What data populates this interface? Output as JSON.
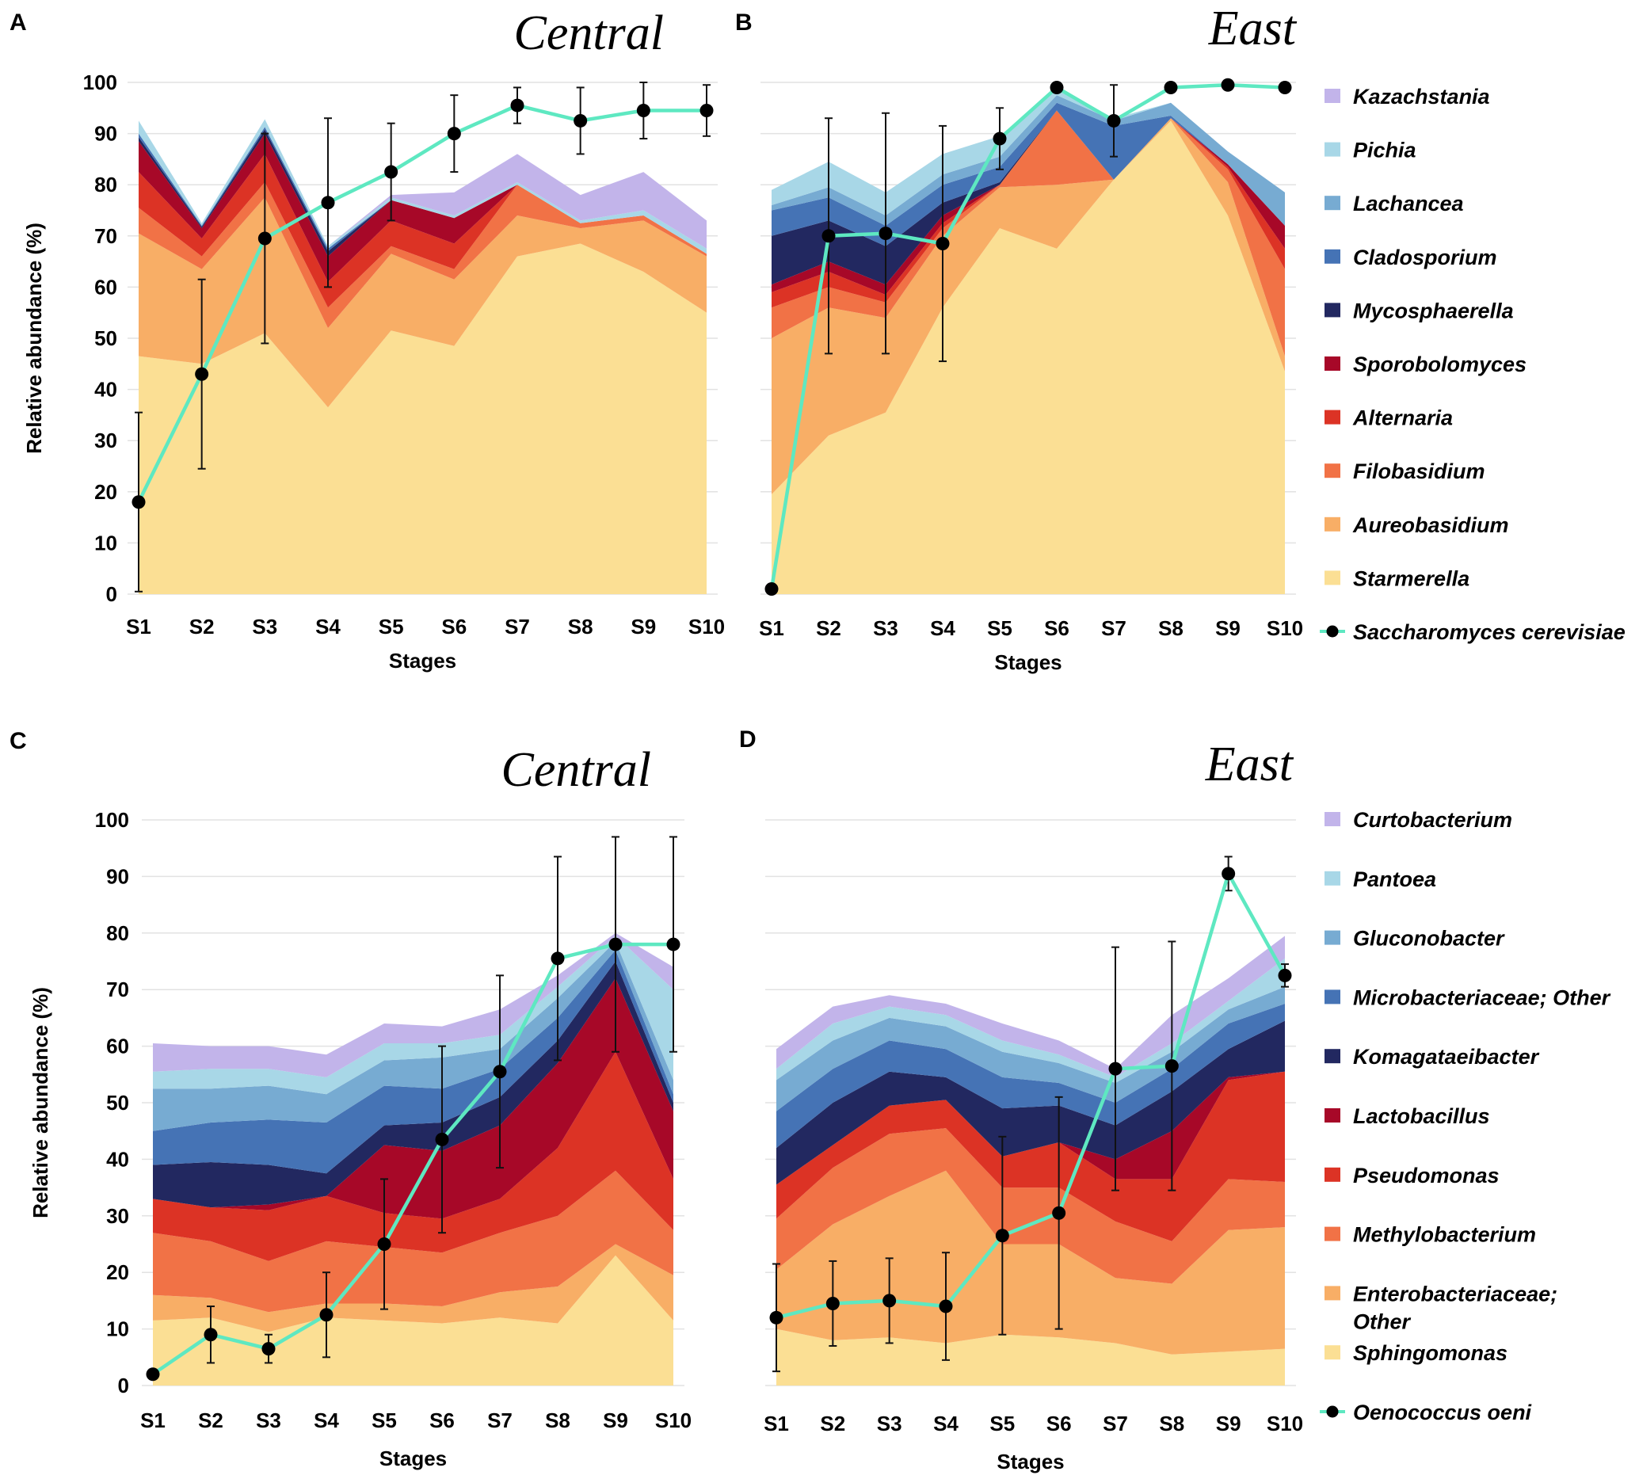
{
  "chart_data": [
    {
      "panel": "A",
      "title": "Central",
      "type": "area",
      "stacked": true,
      "xlabel": "Stages",
      "ylabel": "Relative abundance (%)",
      "ylim": [
        0,
        100
      ],
      "yticks": [
        0,
        10,
        20,
        30,
        40,
        50,
        60,
        70,
        80,
        90,
        100
      ],
      "categories": [
        "S1",
        "S2",
        "S3",
        "S4",
        "S5",
        "S6",
        "S7",
        "S8",
        "S9",
        "S10"
      ],
      "show_yticks": true,
      "series": [
        {
          "name": "Starmerella",
          "color": "#fbdf94",
          "values": [
            46.5,
            45,
            51,
            36.5,
            51.5,
            48.5,
            66,
            68.5,
            63,
            55
          ]
        },
        {
          "name": "Aureobasidium",
          "color": "#f8ae66",
          "values": [
            24,
            18.5,
            26.5,
            15.5,
            15,
            13,
            8,
            3,
            10,
            11
          ]
        },
        {
          "name": "Filobasidium",
          "color": "#f17246",
          "values": [
            5,
            2.5,
            3,
            4,
            1.5,
            2,
            6,
            1,
            1,
            0.5
          ]
        },
        {
          "name": "Alternaria",
          "color": "#dc3325",
          "values": [
            7,
            3.5,
            5.5,
            5,
            5,
            5,
            0,
            0,
            0,
            0
          ]
        },
        {
          "name": "Sporobolomyces",
          "color": "#a70828",
          "values": [
            6,
            2,
            4,
            5,
            4,
            5,
            0,
            0,
            0,
            0
          ]
        },
        {
          "name": "Mycosphaerella",
          "color": "#222860",
          "values": [
            0.8,
            0.3,
            0.8,
            1,
            0,
            0,
            0,
            0,
            0,
            0
          ]
        },
        {
          "name": "Cladosporium",
          "color": "#4573b5",
          "values": [
            0.7,
            0.2,
            0.5,
            0.5,
            0,
            0,
            0,
            0,
            0,
            0
          ]
        },
        {
          "name": "Lachancea",
          "color": "#77abd2",
          "values": [
            0,
            0,
            0,
            0,
            0,
            0,
            0,
            0,
            0,
            0
          ]
        },
        {
          "name": "Pichia",
          "color": "#a8d7e7",
          "values": [
            2.5,
            0.5,
            1.5,
            0.5,
            0.5,
            0.5,
            0.5,
            0.5,
            1,
            1
          ]
        },
        {
          "name": "Kazachstania",
          "color": "#c2b4ea",
          "values": [
            0,
            0,
            0,
            0,
            0.5,
            4.5,
            5.5,
            5,
            7.5,
            5.5
          ]
        }
      ],
      "line": {
        "name": "Saccharomyces cerevisiae",
        "color": "#5ee8c1",
        "values": [
          18,
          43,
          69.5,
          76.5,
          82.5,
          90,
          95.5,
          92.5,
          94.5,
          94.5
        ],
        "error": [
          17.5,
          18.5,
          20.5,
          16.5,
          9.5,
          7.5,
          3.5,
          6.5,
          5.5,
          5
        ]
      }
    },
    {
      "panel": "B",
      "title": "East",
      "type": "area",
      "stacked": true,
      "xlabel": "Stages",
      "ylabel": "",
      "ylim": [
        0,
        100
      ],
      "categories": [
        "S1",
        "S2",
        "S3",
        "S4",
        "S5",
        "S6",
        "S7",
        "S8",
        "S9",
        "S10"
      ],
      "show_yticks": false,
      "series": [
        {
          "name": "Starmerella",
          "color": "#fbdf94",
          "values": [
            19.5,
            31,
            35.5,
            56,
            71.5,
            67.5,
            81,
            92.5,
            74,
            43.5
          ]
        },
        {
          "name": "Aureobasidium",
          "color": "#f8ae66",
          "values": [
            30.5,
            25,
            18.5,
            14,
            8,
            12.5,
            0,
            0.5,
            6.5,
            3
          ]
        },
        {
          "name": "Filobasidium",
          "color": "#f17246",
          "values": [
            6,
            4,
            3,
            1.5,
            0.5,
            14.5,
            0,
            0,
            2.5,
            17
          ]
        },
        {
          "name": "Alternaria",
          "color": "#dc3325",
          "values": [
            3,
            3,
            1.5,
            1,
            0,
            0,
            0,
            0,
            0.5,
            4
          ]
        },
        {
          "name": "Sporobolomyces",
          "color": "#a70828",
          "values": [
            1.5,
            2,
            2,
            1.5,
            0,
            0,
            0,
            0,
            0.5,
            4.5
          ]
        },
        {
          "name": "Mycosphaerella",
          "color": "#222860",
          "values": [
            9.5,
            8,
            7.5,
            2.5,
            0.5,
            0,
            0,
            0,
            0,
            0
          ]
        },
        {
          "name": "Cladosporium",
          "color": "#4573b5",
          "values": [
            5,
            4.5,
            4,
            3.5,
            3,
            1.5,
            10.5,
            0.5,
            0,
            0
          ]
        },
        {
          "name": "Lachancea",
          "color": "#77abd2",
          "values": [
            1,
            2,
            2,
            2,
            2,
            1.5,
            1,
            2.5,
            2.5,
            6.5
          ]
        },
        {
          "name": "Pichia",
          "color": "#a8d7e7",
          "values": [
            3,
            5,
            4.5,
            4,
            4,
            1.5,
            0.5,
            0,
            0,
            0
          ]
        },
        {
          "name": "Kazachstania",
          "color": "#c2b4ea",
          "values": [
            0,
            0,
            0,
            0,
            0,
            0,
            0,
            0,
            0,
            0
          ]
        }
      ],
      "line": {
        "name": "Saccharomyces cerevisiae",
        "color": "#5ee8c1",
        "values": [
          1,
          70,
          70.5,
          68.5,
          89,
          99,
          92.5,
          99,
          99.5,
          99
        ],
        "error": [
          0,
          23,
          23.5,
          23,
          6,
          0,
          7,
          0,
          0,
          0
        ]
      }
    },
    {
      "panel": "C",
      "title": "Central",
      "type": "area",
      "stacked": true,
      "xlabel": "Stages",
      "ylabel": "Relative abundance (%)",
      "ylim": [
        0,
        100
      ],
      "yticks": [
        0,
        10,
        20,
        30,
        40,
        50,
        60,
        70,
        80,
        90,
        100
      ],
      "categories": [
        "S1",
        "S2",
        "S3",
        "S4",
        "S5",
        "S6",
        "S7",
        "S8",
        "S9",
        "S10"
      ],
      "show_yticks": true,
      "series": [
        {
          "name": "Sphingomonas",
          "color": "#fbdf94",
          "values": [
            11.5,
            12,
            9.5,
            12,
            11.5,
            11,
            12,
            11,
            23,
            11.5
          ]
        },
        {
          "name": "Enterobacteriaceae; Other",
          "color": "#f8ae66",
          "values": [
            4.5,
            3.5,
            3.5,
            2.5,
            3,
            3,
            4.5,
            6.5,
            2,
            8
          ]
        },
        {
          "name": "Methylobacterium",
          "color": "#f17246",
          "values": [
            11,
            10,
            9,
            11,
            10,
            9.5,
            10.5,
            12.5,
            13,
            8
          ]
        },
        {
          "name": "Pseudomonas",
          "color": "#dc3325",
          "values": [
            6,
            6,
            9,
            8,
            6,
            6,
            6,
            12,
            21,
            9
          ]
        },
        {
          "name": "Lactobacillus",
          "color": "#a70828",
          "values": [
            0,
            0,
            1,
            0,
            12,
            12,
            13,
            15,
            13,
            12
          ]
        },
        {
          "name": "Komagataeibacter",
          "color": "#222860",
          "values": [
            6,
            8,
            7,
            4,
            3.5,
            5,
            5,
            4,
            3,
            1.5
          ]
        },
        {
          "name": "Microbacteriaceae; Other",
          "color": "#4573b5",
          "values": [
            6,
            7,
            8,
            9,
            7,
            6,
            5,
            4,
            2,
            1.5
          ]
        },
        {
          "name": "Gluconobacter",
          "color": "#77abd2",
          "values": [
            7.5,
            6,
            6,
            5,
            4.5,
            5.5,
            3.5,
            3.5,
            1.5,
            2.5
          ]
        },
        {
          "name": "Pantoea",
          "color": "#a8d7e7",
          "values": [
            3,
            3.5,
            3,
            3,
            3,
            2.5,
            2.5,
            2,
            1,
            16
          ]
        },
        {
          "name": "Curtobacterium",
          "color": "#c2b4ea",
          "values": [
            5,
            4,
            4,
            4,
            3.5,
            3,
            4.5,
            2,
            0.5,
            4
          ]
        }
      ],
      "line": {
        "name": "Oenococcus oeni",
        "color": "#5ee8c1",
        "values": [
          2,
          9,
          6.5,
          12.5,
          25,
          43.5,
          55.5,
          75.5,
          78,
          78
        ],
        "error": [
          0,
          5,
          2.5,
          7.5,
          11.5,
          16.5,
          17,
          18,
          19,
          19
        ]
      }
    },
    {
      "panel": "D",
      "title": "East",
      "type": "area",
      "stacked": true,
      "xlabel": "Stages",
      "ylabel": "",
      "ylim": [
        0,
        100
      ],
      "categories": [
        "S1",
        "S2",
        "S3",
        "S4",
        "S5",
        "S6",
        "S7",
        "S8",
        "S9",
        "S10"
      ],
      "show_yticks": false,
      "series": [
        {
          "name": "Sphingomonas",
          "color": "#fbdf94",
          "values": [
            10,
            8,
            8.5,
            7.5,
            9,
            8.5,
            7.5,
            5.5,
            6,
            6.5
          ]
        },
        {
          "name": "Enterobacteriaceae; Other",
          "color": "#f8ae66",
          "values": [
            10.5,
            20.5,
            25,
            30.5,
            16,
            16.5,
            11.5,
            12.5,
            21.5,
            21.5
          ]
        },
        {
          "name": "Methylobacterium",
          "color": "#f17246",
          "values": [
            9,
            10,
            11,
            7.5,
            10,
            10,
            10,
            7.5,
            9,
            8
          ]
        },
        {
          "name": "Pseudomonas",
          "color": "#dc3325",
          "values": [
            6,
            4,
            5,
            5,
            5.5,
            8,
            7.5,
            11,
            17.5,
            19.5
          ]
        },
        {
          "name": "Lactobacillus",
          "color": "#a70828",
          "values": [
            0,
            0,
            0,
            0,
            0,
            0,
            3.5,
            8.5,
            0.5,
            0
          ]
        },
        {
          "name": "Komagataeibacter",
          "color": "#222860",
          "values": [
            6.5,
            7.5,
            6,
            4,
            8.5,
            6.5,
            6,
            7,
            5,
            9
          ]
        },
        {
          "name": "Microbacteriaceae; Other",
          "color": "#4573b5",
          "values": [
            6.5,
            6,
            5.5,
            5,
            5.5,
            4,
            4,
            4,
            4.5,
            3
          ]
        },
        {
          "name": "Gluconobacter",
          "color": "#77abd2",
          "values": [
            5.5,
            5,
            4,
            4,
            4.5,
            3.5,
            3.5,
            3,
            2.5,
            3
          ]
        },
        {
          "name": "Pantoea",
          "color": "#a8d7e7",
          "values": [
            2,
            3,
            2,
            2,
            2,
            1.5,
            1,
            1.5,
            1.5,
            5
          ]
        },
        {
          "name": "Curtobacterium",
          "color": "#c2b4ea",
          "values": [
            3.5,
            3,
            2,
            2,
            3,
            2.5,
            1.5,
            5,
            4,
            4
          ]
        }
      ],
      "line": {
        "name": "Oenococcus oeni",
        "color": "#5ee8c1",
        "values": [
          12,
          14.5,
          15,
          14,
          26.5,
          30.5,
          56,
          56.5,
          90.5,
          72.5
        ],
        "error": [
          9.5,
          7.5,
          7.5,
          9.5,
          17.5,
          20.5,
          21.5,
          22,
          3,
          2
        ]
      }
    }
  ],
  "legends": [
    {
      "for_panels": "A,B",
      "items": [
        "Kazachstania",
        "Pichia",
        "Lachancea",
        "Cladosporium",
        "Mycosphaerella",
        "Sporobolomyces",
        "Alternaria",
        "Filobasidium",
        "Aureobasidium",
        "Starmerella"
      ],
      "colors": [
        "#c2b4ea",
        "#a8d7e7",
        "#77abd2",
        "#4573b5",
        "#222860",
        "#a70828",
        "#dc3325",
        "#f17246",
        "#f8ae66",
        "#fbdf94"
      ],
      "line_item": "Saccharomyces cerevisiae",
      "line_color": "#5ee8c1"
    },
    {
      "for_panels": "C,D",
      "items": [
        "Curtobacterium",
        "Pantoea",
        "Gluconobacter",
        "Microbacteriaceae; Other",
        "Komagataeibacter",
        "Lactobacillus",
        "Pseudomonas",
        "Methylobacterium",
        "Enterobacteriaceae; Other",
        "Sphingomonas"
      ],
      "colors": [
        "#c2b4ea",
        "#a8d7e7",
        "#77abd2",
        "#4573b5",
        "#222860",
        "#a70828",
        "#dc3325",
        "#f17246",
        "#f8ae66",
        "#fbdf94"
      ],
      "line_item": "Oenococcus oeni",
      "line_color": "#5ee8c1"
    }
  ]
}
